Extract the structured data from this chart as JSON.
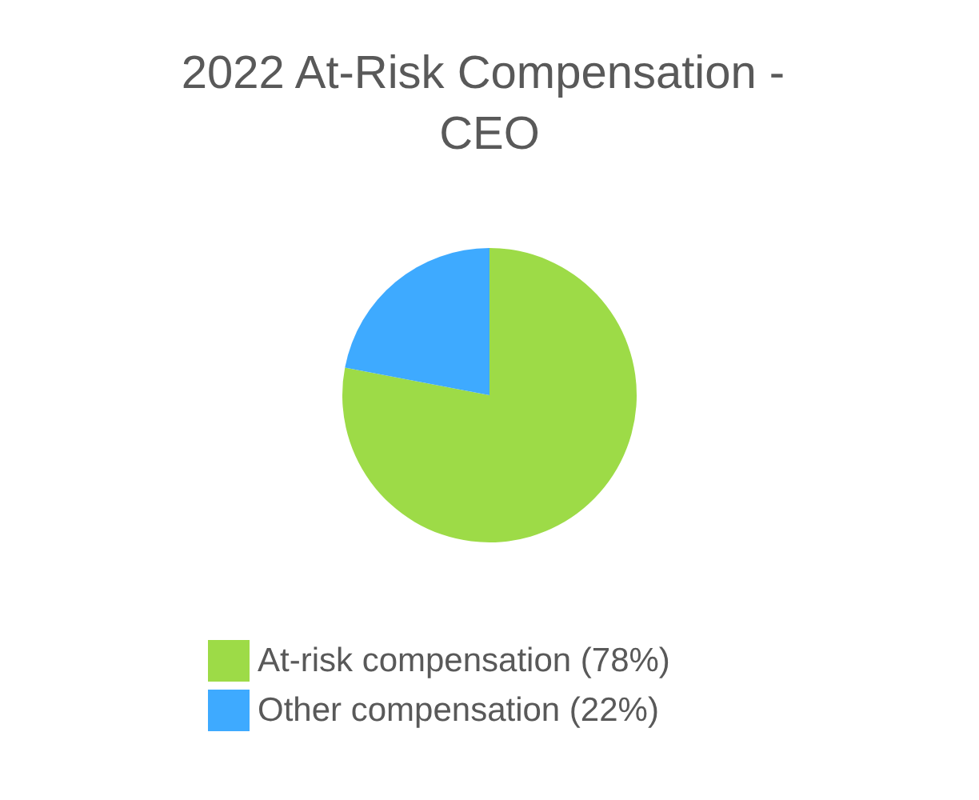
{
  "chart_data": {
    "type": "pie",
    "title": "2022 At-Risk Compensation - CEO",
    "categories": [
      "At-risk compensation (78%)",
      "Other compensation (22%)"
    ],
    "values": [
      78,
      22
    ],
    "colors": [
      "#9ddb47",
      "#3eaaff"
    ],
    "legend": "bottom"
  }
}
